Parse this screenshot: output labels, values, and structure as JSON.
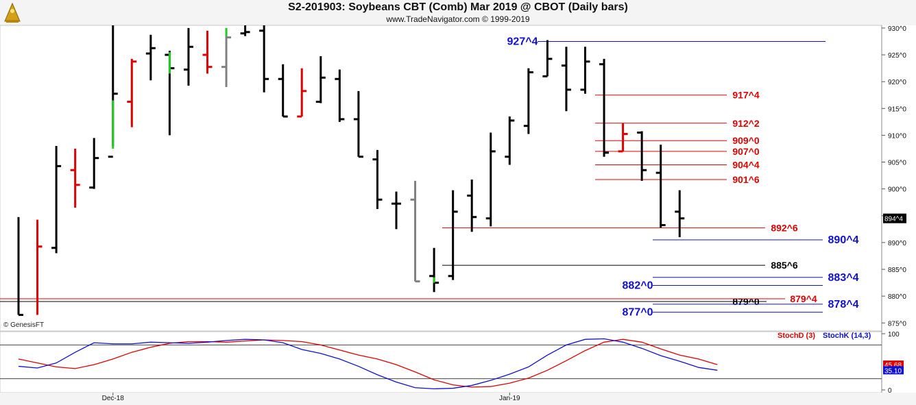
{
  "header": {
    "title": "S2-201903:  Soybeans CBT (Comb) Mar 2019 @ CBOT  (Daily bars)",
    "subtitle": "www.TradeNavigator.com © 1999-2019",
    "watermark": "© GenesisFT"
  },
  "chart_data": [
    {
      "type": "ohlc",
      "title": "S2-201903:  Soybeans CBT (Comb) Mar 2019 @ CBOT  (Daily bars)",
      "price_labels": {
        "y_ticks": [
          "875^0",
          "880^0",
          "885^0",
          "890^0",
          "895^0",
          "900^0",
          "905^0",
          "910^0",
          "915^0",
          "920^0",
          "925^0",
          "930^0"
        ],
        "y_tick_values": [
          875,
          880,
          885,
          890,
          895,
          900,
          905,
          910,
          915,
          920,
          925,
          930
        ],
        "ylim": [
          873.5,
          930.5
        ],
        "last_price": "894^4",
        "last_value": 894.5
      },
      "x_labels": [
        {
          "label": "Dec-18",
          "bar_index": 5
        },
        {
          "label": "Jan-19",
          "bar_index": 26
        }
      ],
      "bars": [
        {
          "o": null,
          "h": 894.75,
          "l": 876.5,
          "c": 876.5,
          "color": "#000000"
        },
        {
          "o": null,
          "h": 894.25,
          "l": 876.5,
          "c": 889.25,
          "color": "#e00000"
        },
        {
          "o": 889.0,
          "h": 908.0,
          "l": 888.0,
          "c": 904.25,
          "color": "#000000"
        },
        {
          "o": 903.5,
          "h": 907.5,
          "l": 896.5,
          "c": 900.75,
          "color": "#e00000"
        },
        {
          "o": 900.25,
          "h": 909.5,
          "l": 900.0,
          "c": 905.75,
          "color": "#000000"
        },
        {
          "o": 906.0,
          "h": 930.5,
          "l": 908.0,
          "c": 917.75,
          "color": "#000000"
        },
        {
          "o": 916.25,
          "h": 924.25,
          "l": 911.5,
          "c": 923.75,
          "color": "#e00000"
        },
        {
          "o": 925.25,
          "h": 928.75,
          "l": 920.25,
          "c": 926.25,
          "color": "#000000"
        },
        {
          "o": 925.0,
          "h": 925.75,
          "l": 910.0,
          "c": 922.5,
          "color": "#000000"
        },
        {
          "o": 922.25,
          "h": 930.0,
          "l": 919.25,
          "c": 926.5,
          "color": "#000000"
        },
        {
          "o": 925.0,
          "h": 929.5,
          "l": 921.5,
          "c": 922.75,
          "color": "#e00000"
        },
        {
          "o": 922.75,
          "h": 930.0,
          "l": 919.0,
          "c": 928.25,
          "color": "#808080"
        },
        {
          "o": 929.0,
          "h": 930.5,
          "l": 928.5,
          "c": 929.25,
          "color": "#000000"
        },
        {
          "o": 929.5,
          "h": 930.5,
          "l": 918.0,
          "c": 920.5,
          "color": "#000000"
        },
        {
          "o": 920.5,
          "h": 923.25,
          "l": 913.5,
          "c": 913.5,
          "color": "#000000"
        },
        {
          "o": 913.5,
          "h": 922.5,
          "l": 913.5,
          "c": 918.25,
          "color": "#e00000"
        },
        {
          "o": 916.25,
          "h": 924.75,
          "l": 916.0,
          "c": 920.75,
          "color": "#000000"
        },
        {
          "o": 920.5,
          "h": 922.25,
          "l": 912.5,
          "c": 913.0,
          "color": "#000000"
        },
        {
          "o": 913.0,
          "h": 918.25,
          "l": 906.0,
          "c": 906.0,
          "color": "#000000"
        },
        {
          "o": 905.5,
          "h": 907.25,
          "l": 896.25,
          "c": 898.0,
          "color": "#000000"
        },
        {
          "o": 897.25,
          "h": 899.5,
          "l": 892.5,
          "c": 897.25,
          "color": "#000000"
        },
        {
          "o": 898.0,
          "h": 901.5,
          "l": 882.75,
          "c": 882.75,
          "color": "#808080"
        },
        {
          "o": 883.75,
          "h": 889.0,
          "l": 880.75,
          "c": 882.5,
          "color": "#000000"
        },
        {
          "o": 883.75,
          "h": 899.75,
          "l": 883.0,
          "c": 895.75,
          "color": "#000000"
        },
        {
          "o": 898.75,
          "h": 901.75,
          "l": 892.0,
          "c": 894.75,
          "color": "#000000"
        },
        {
          "o": 894.5,
          "h": 910.5,
          "l": 893.0,
          "c": 907.0,
          "color": "#000000"
        },
        {
          "o": 906.0,
          "h": 913.5,
          "l": 904.5,
          "c": 912.75,
          "color": "#000000"
        },
        {
          "o": 911.75,
          "h": 922.5,
          "l": 910.25,
          "c": 921.75,
          "color": "#000000"
        },
        {
          "o": 921.0,
          "h": 927.75,
          "l": 921.0,
          "c": 924.25,
          "color": "#000000"
        },
        {
          "o": 923.0,
          "h": 926.5,
          "l": 914.5,
          "c": 918.5,
          "color": "#000000"
        },
        {
          "o": 918.5,
          "h": 926.5,
          "l": 917.75,
          "c": 923.75,
          "color": "#000000"
        },
        {
          "o": 923.25,
          "h": 924.25,
          "l": 906.0,
          "c": 906.75,
          "color": "#000000"
        },
        {
          "o": 907.0,
          "h": 912.25,
          "l": 907.0,
          "c": 910.25,
          "color": "#e00000"
        },
        {
          "o": 910.5,
          "h": 910.75,
          "l": 901.5,
          "c": 903.5,
          "color": "#000000"
        },
        {
          "o": 903.0,
          "h": 908.25,
          "l": 892.75,
          "c": 893.25,
          "color": "#000000"
        },
        {
          "o": 895.75,
          "h": 899.75,
          "l": 891.0,
          "c": 894.5,
          "color": "#000000"
        }
      ],
      "levels": [
        {
          "label": "927^4",
          "value": 927.5,
          "color": "#1010d0"
        },
        {
          "label": "917^4",
          "value": 917.5,
          "color": "#e00000"
        },
        {
          "label": "912^2",
          "value": 912.25,
          "color": "#e00000"
        },
        {
          "label": "909^0",
          "value": 909.0,
          "color": "#e00000"
        },
        {
          "label": "907^0",
          "value": 907.0,
          "color": "#e00000"
        },
        {
          "label": "904^4",
          "value": 904.5,
          "color": "#e00000"
        },
        {
          "label": "901^6",
          "value": 901.75,
          "color": "#e00000"
        },
        {
          "label": "892^6",
          "value": 892.75,
          "color": "#e00000"
        },
        {
          "label": "890^4",
          "value": 890.5,
          "color": "#1010d0"
        },
        {
          "label": "885^6",
          "value": 885.75,
          "color": "#000000"
        },
        {
          "label": "883^4",
          "value": 883.5,
          "color": "#1010d0"
        },
        {
          "label": "882^0",
          "value": 882.0,
          "color": "#1010d0"
        },
        {
          "label": "879^0",
          "value": 879.0,
          "color": "#000000"
        },
        {
          "label": "879^4",
          "value": 879.5,
          "color": "#e00000"
        },
        {
          "label": "878^4",
          "value": 878.5,
          "color": "#1010d0"
        },
        {
          "label": "877^0",
          "value": 877.0,
          "color": "#1010d0"
        }
      ]
    },
    {
      "type": "line",
      "title": "",
      "ylim": [
        0,
        100
      ],
      "y_ticks": [
        "0",
        "100"
      ],
      "reference_lines": [
        80,
        20
      ],
      "series": [
        {
          "name": "StochD (3)",
          "color": "#e00000",
          "last_label": "45.68",
          "values": [
            55,
            48,
            41,
            38,
            45,
            55,
            67,
            76,
            83,
            86,
            86,
            85,
            87,
            89,
            88,
            86,
            80,
            71,
            62,
            55,
            45,
            32,
            18,
            9,
            5,
            6,
            12,
            21,
            35,
            52,
            70,
            85,
            90,
            85,
            73,
            62,
            55,
            45
          ]
        },
        {
          "name": "StochK (14,3)",
          "color": "#1010d0",
          "last_label": "35.10",
          "values": [
            42,
            39,
            48,
            67,
            84,
            82,
            82,
            85,
            84,
            83,
            85,
            88,
            90,
            89,
            84,
            72,
            65,
            55,
            42,
            27,
            14,
            4,
            2,
            3,
            8,
            17,
            28,
            41,
            62,
            80,
            90,
            91,
            85,
            74,
            61,
            51,
            40,
            35
          ]
        }
      ]
    }
  ],
  "annotations": {
    "label_885_6_note": "885^6"
  }
}
